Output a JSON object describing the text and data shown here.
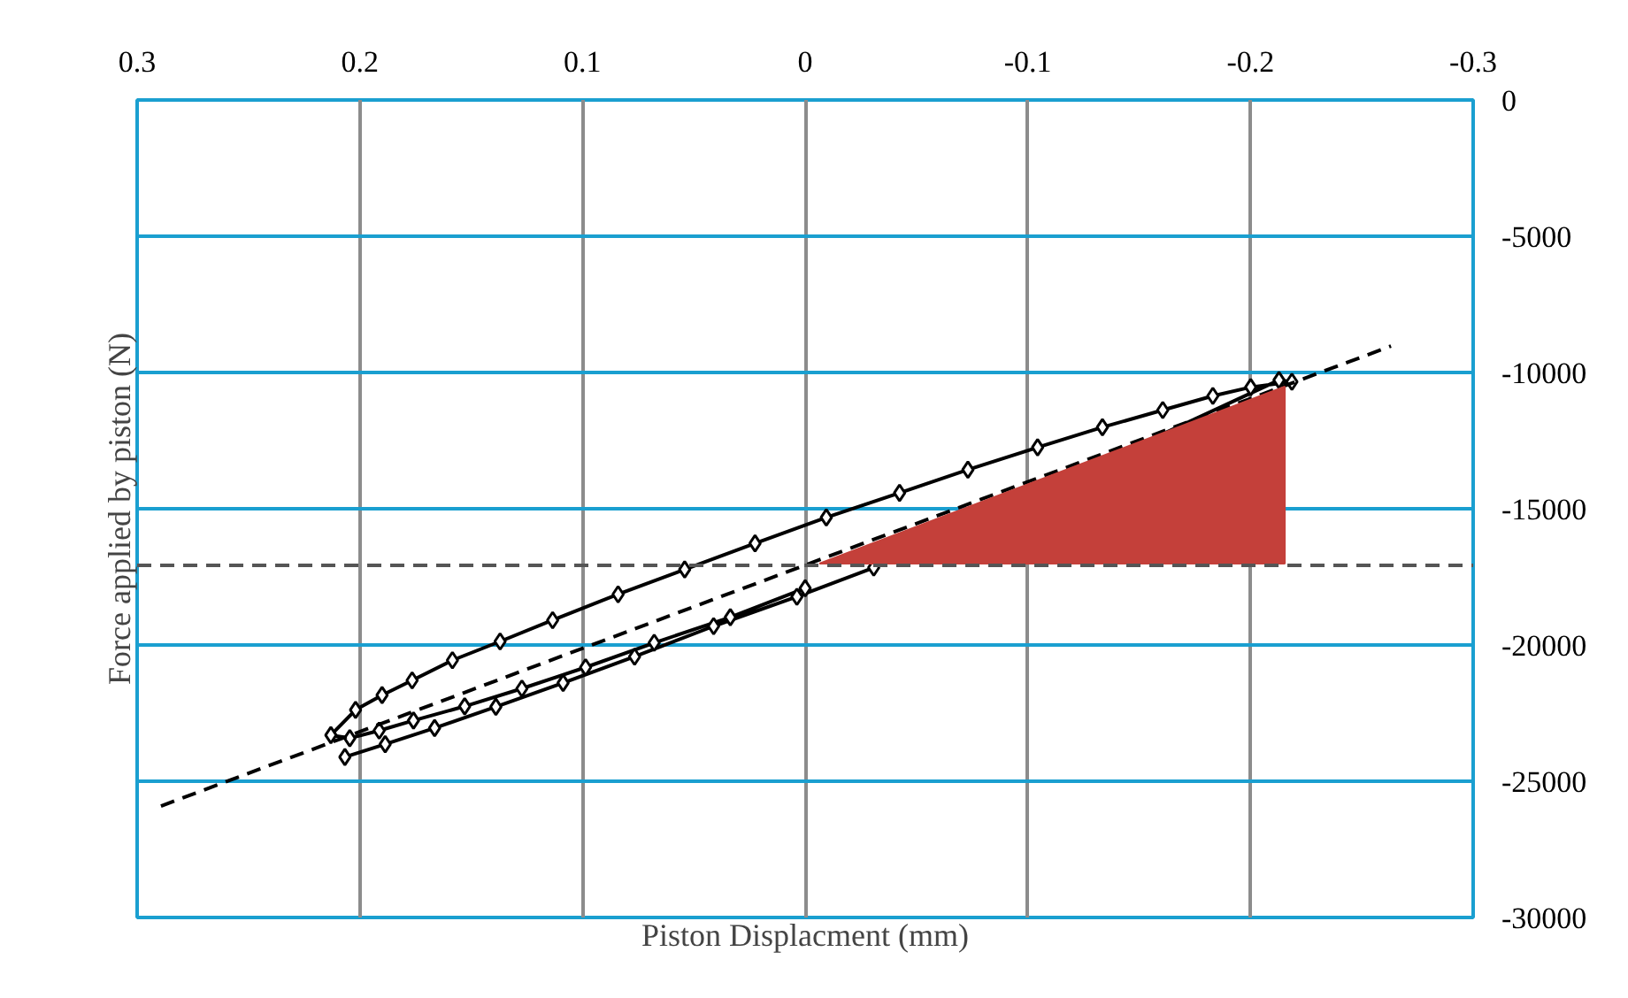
{
  "chart_data": {
    "type": "line",
    "xlabel": "Piston Displacment (mm)",
    "ylabel": "Force applied by piston (N)",
    "xlim": [
      0.3,
      -0.3
    ],
    "xticks": [
      0.3,
      0.2,
      0.1,
      0,
      -0.1,
      -0.2,
      -0.3
    ],
    "ylim": [
      -30000,
      0
    ],
    "yticks": [
      0,
      -5000,
      -10000,
      -15000,
      -20000,
      -25000,
      -30000
    ],
    "grid": true,
    "marker": "diamond",
    "line_style": "solid",
    "series": [
      {
        "type": "area",
        "marker": "none",
        "color": "#c4403a",
        "x": [
          -0.0064,
          -0.2154,
          -0.2154
        ],
        "values": [
          -17010,
          -10520,
          -17010
        ]
      },
      {
        "color": "#000000",
        "x": [
          0.2067,
          0.1886,
          0.1664,
          0.1389,
          0.1087,
          0.0766,
          0.0411,
          0.0037,
          -0.0308,
          -0.2128,
          -0.2186,
          -0.2001,
          -0.1831,
          -0.1606,
          -0.1335,
          -0.1044,
          -0.0731,
          -0.0424,
          -0.0095,
          0.0225,
          0.0541,
          0.084,
          0.1134,
          0.137,
          0.1584,
          0.1765,
          0.19,
          0.2019,
          0.213,
          0.2045,
          0.1913,
          0.1759,
          0.1529,
          0.1272,
          0.0986,
          0.0678,
          0.0336,
          0.0
        ],
        "values": [
          -24110,
          -23640,
          -23050,
          -22270,
          -21390,
          -20430,
          -19310,
          -18230,
          -17160,
          -10280,
          -10340,
          -10540,
          -10860,
          -11380,
          -12010,
          -12750,
          -13570,
          -14420,
          -15320,
          -16270,
          -17230,
          -18140,
          -19090,
          -19870,
          -20560,
          -21300,
          -21840,
          -22380,
          -23310,
          -23420,
          -23140,
          -22770,
          -22250,
          -21600,
          -20820,
          -19920,
          -18980,
          -17920
        ]
      },
      {
        "color": "#000000",
        "marker": "none",
        "line_style": "dashed",
        "x": [
          0.2893,
          -0.2631
        ],
        "values": [
          -25910,
          -9030
        ]
      }
    ],
    "ref_lines": [
      {
        "axis": "y",
        "value": -17080,
        "color": "#555555",
        "line_style": "dashed"
      }
    ]
  }
}
